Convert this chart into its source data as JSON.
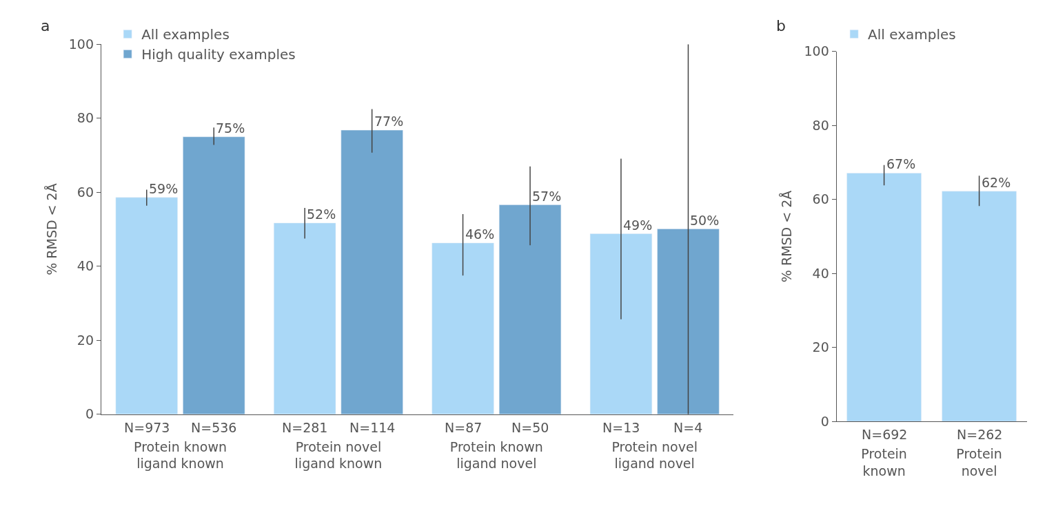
{
  "chart_data": [
    {
      "type": "bar",
      "title": "a",
      "ylabel": "% RMSD < 2Å",
      "categories": [
        "Protein known\nligand known",
        "Protein novel\nligand known",
        "Protein known\nligand novel",
        "Protein novel\nligand novel"
      ],
      "series": [
        {
          "name": "All examples",
          "color": "#aad8f7",
          "values": [
            58.6,
            51.7,
            46.3,
            48.8
          ],
          "value_labels": [
            "59%",
            "52%",
            "46%",
            "49%"
          ],
          "errors": [
            [
              56.4,
              60.7
            ],
            [
              47.5,
              55.8
            ],
            [
              37.5,
              54.1
            ],
            [
              25.7,
              69.1
            ]
          ]
        },
        {
          "name": "High quality examples",
          "color": "#70a6cf",
          "values": [
            75.0,
            76.8,
            56.6,
            50.1
          ],
          "value_labels": [
            "75%",
            "77%",
            "57%",
            "50%"
          ],
          "errors": [
            [
              72.8,
              77.5
            ],
            [
              70.7,
              82.5
            ],
            [
              45.7,
              67.0
            ],
            [
              0,
              100
            ]
          ]
        }
      ],
      "annotations": [
        "N=973",
        "N=536",
        "N=281",
        "N=114",
        "N=87",
        "N=50",
        "N=13",
        "N=4"
      ],
      "ylim": [
        0,
        100
      ],
      "yticks": [
        0,
        20,
        40,
        60,
        80,
        100
      ],
      "legend": "top left"
    },
    {
      "type": "bar",
      "title": "b",
      "ylabel": "% RMSD < 2Å",
      "categories": [
        "Protein\nknown",
        "Protein\nnovel"
      ],
      "series": [
        {
          "name": "All examples",
          "color": "#aad8f7",
          "values": [
            67.1,
            62.2
          ],
          "value_labels": [
            "67%",
            "62%"
          ],
          "errors": [
            [
              63.8,
              69.3
            ],
            [
              58.2,
              66.4
            ]
          ]
        }
      ],
      "annotations": [
        "N=692",
        "N=262"
      ],
      "ylim": [
        0,
        100
      ],
      "yticks": [
        0,
        20,
        40,
        60,
        80,
        100
      ],
      "legend": "top left"
    }
  ]
}
